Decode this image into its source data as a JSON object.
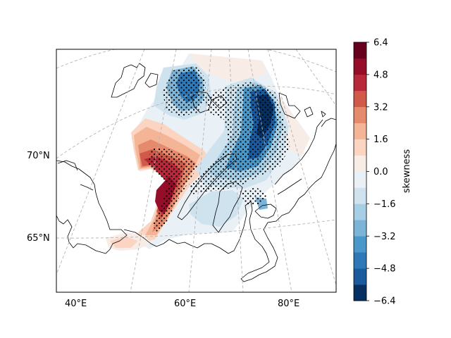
{
  "map": {
    "projection": "polar stereographic",
    "gridlines": "dashed",
    "longitude_ticks": [
      "40°E",
      "60°E",
      "80°E"
    ],
    "latitude_ticks": [
      "70°N",
      "65°N"
    ],
    "stipple_meaning": "hatched significance dots"
  },
  "colorbar": {
    "label": "skewness",
    "min": -6.4,
    "max": 6.4,
    "tick_labels": [
      "6.4",
      "4.8",
      "3.2",
      "1.6",
      "0.0",
      "−1.6",
      "−3.2",
      "−4.8",
      "−6.4"
    ],
    "levels_colors": [
      "#053061",
      "#1b5a9c",
      "#2e78b7",
      "#4a98c9",
      "#7bb4d6",
      "#a6cee4",
      "#cfe3ef",
      "#eaf1f6",
      "#f8ece6",
      "#fbd5c2",
      "#f4b596",
      "#e58a6c",
      "#d1594a",
      "#b7293a",
      "#950d28",
      "#67001f"
    ]
  }
}
